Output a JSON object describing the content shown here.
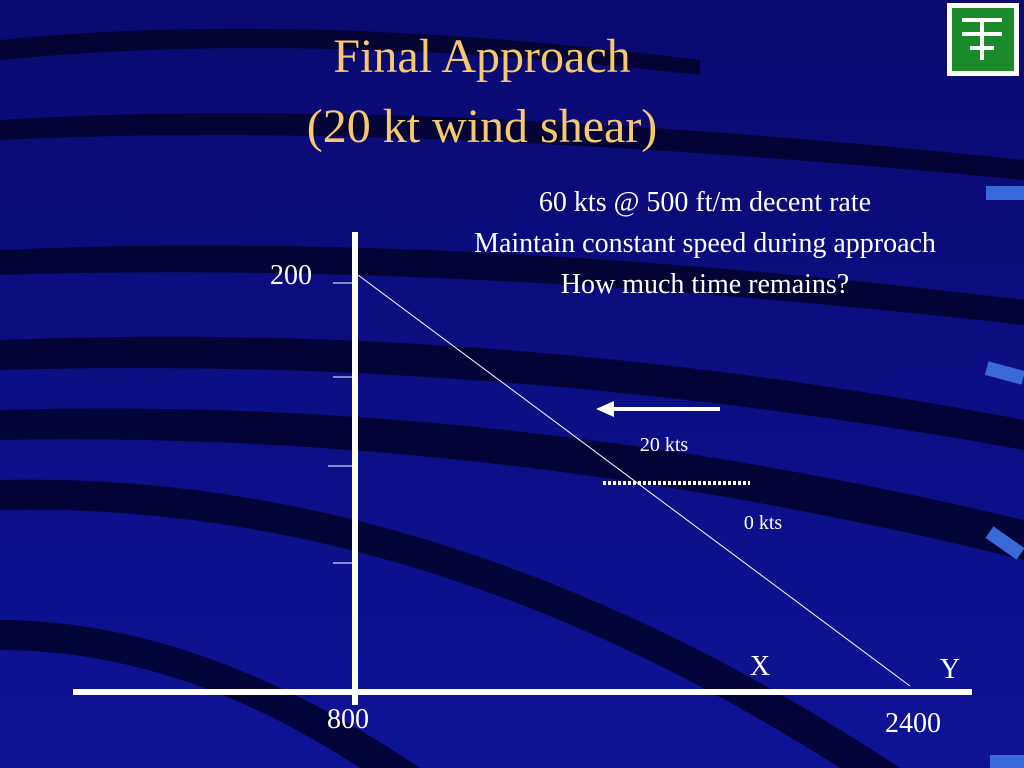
{
  "title": {
    "lines": [
      "Final Approach",
      "(20 kt wind shear)"
    ]
  },
  "notes": [
    "60 kts @ 500 ft/m decent rate",
    "Maintain constant speed during approach",
    "How much time remains?"
  ],
  "axis_labels": {
    "y_top": "200",
    "x_left": "800",
    "x_right": "2400"
  },
  "points": {
    "x": "X",
    "y": "Y"
  },
  "wind": {
    "upper": "20 kts",
    "lower": "0 kts"
  }
}
